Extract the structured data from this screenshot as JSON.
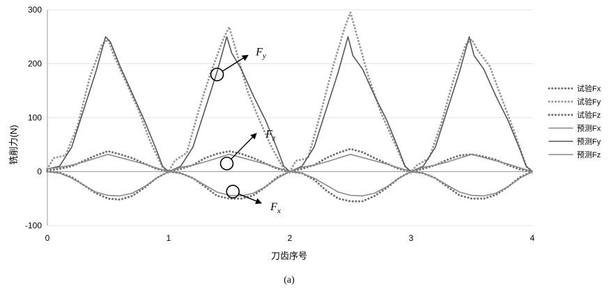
{
  "chart_data": {
    "type": "line",
    "title": "",
    "xlabel": "刀齿序号",
    "ylabel": "铣削力(N)",
    "caption": "(a)",
    "xlim": [
      0,
      4
    ],
    "ylim": [
      -100,
      300
    ],
    "xticks": [
      0,
      1,
      2,
      3,
      4
    ],
    "yticks": [
      -100,
      0,
      100,
      200,
      300
    ],
    "grid": "horizontal",
    "legend_position": "right",
    "series": [
      {
        "name": "试验Fx",
        "style": "dotted",
        "color": "#6f6f6f",
        "x": [
          0,
          0.1,
          0.2,
          0.3,
          0.4,
          0.5,
          0.6,
          0.7,
          0.8,
          0.9,
          1.0,
          1.1,
          1.2,
          1.3,
          1.4,
          1.5,
          1.6,
          1.7,
          1.8,
          1.9,
          2.0,
          2.1,
          2.2,
          2.3,
          2.4,
          2.5,
          2.6,
          2.7,
          2.8,
          2.9,
          3.0,
          3.1,
          3.2,
          3.3,
          3.4,
          3.5,
          3.6,
          3.7,
          3.8,
          3.9,
          4.0
        ],
        "y": [
          0,
          -2,
          -10,
          -25,
          -40,
          -50,
          -52,
          -45,
          -30,
          -12,
          0,
          -3,
          -12,
          -28,
          -45,
          -50,
          -50,
          -44,
          -28,
          -10,
          0,
          -3,
          -15,
          -35,
          -50,
          -55,
          -55,
          -45,
          -30,
          -12,
          0,
          -3,
          -12,
          -28,
          -44,
          -50,
          -50,
          -43,
          -28,
          -10,
          0
        ]
      },
      {
        "name": "试验Fy",
        "style": "dotted",
        "color": "#9a9a9a",
        "x": [
          0,
          0.05,
          0.15,
          0.25,
          0.35,
          0.45,
          0.5,
          0.55,
          0.65,
          0.75,
          0.85,
          0.95,
          1.0,
          1.05,
          1.15,
          1.25,
          1.35,
          1.45,
          1.5,
          1.55,
          1.65,
          1.75,
          1.85,
          1.95,
          2.0,
          2.05,
          2.15,
          2.25,
          2.35,
          2.45,
          2.5,
          2.55,
          2.65,
          2.75,
          2.85,
          2.95,
          3.0,
          3.05,
          3.15,
          3.25,
          3.35,
          3.45,
          3.5,
          3.55,
          3.65,
          3.75,
          3.85,
          3.95,
          4.0
        ],
        "y": [
          5,
          25,
          30,
          85,
          175,
          235,
          245,
          215,
          165,
          115,
          55,
          8,
          0,
          20,
          35,
          115,
          185,
          245,
          268,
          230,
          150,
          95,
          45,
          5,
          0,
          20,
          25,
          105,
          190,
          265,
          295,
          255,
          175,
          110,
          60,
          10,
          0,
          12,
          25,
          90,
          170,
          235,
          245,
          225,
          195,
          135,
          75,
          10,
          0
        ]
      },
      {
        "name": "试验Fz",
        "style": "dotted",
        "color": "#6f6f6f",
        "x": [
          0,
          0.1,
          0.2,
          0.3,
          0.4,
          0.5,
          0.6,
          0.7,
          0.8,
          0.9,
          1.0,
          1.1,
          1.2,
          1.3,
          1.4,
          1.5,
          1.6,
          1.7,
          1.8,
          1.9,
          2.0,
          2.1,
          2.2,
          2.3,
          2.4,
          2.5,
          2.6,
          2.7,
          2.8,
          2.9,
          3.0,
          3.1,
          3.2,
          3.3,
          3.4,
          3.5,
          3.6,
          3.7,
          3.8,
          3.9,
          4.0
        ],
        "y": [
          2,
          5,
          10,
          20,
          30,
          38,
          32,
          25,
          15,
          5,
          0,
          5,
          12,
          25,
          33,
          38,
          33,
          25,
          15,
          5,
          0,
          5,
          12,
          25,
          35,
          42,
          36,
          25,
          15,
          5,
          0,
          5,
          12,
          22,
          30,
          32,
          28,
          22,
          12,
          4,
          0
        ]
      },
      {
        "name": "预测Fx",
        "style": "solid",
        "color": "#8a8a8a",
        "x": [
          0,
          0.1,
          0.2,
          0.3,
          0.4,
          0.5,
          0.6,
          0.7,
          0.8,
          0.9,
          1.0,
          1.1,
          1.2,
          1.3,
          1.4,
          1.5,
          1.6,
          1.7,
          1.8,
          1.9,
          2.0,
          2.1,
          2.2,
          2.3,
          2.4,
          2.5,
          2.6,
          2.7,
          2.8,
          2.9,
          3.0,
          3.1,
          3.2,
          3.3,
          3.4,
          3.5,
          3.6,
          3.7,
          3.8,
          3.9,
          4.0
        ],
        "y": [
          0,
          -3,
          -12,
          -25,
          -38,
          -44,
          -45,
          -40,
          -28,
          -12,
          0,
          -3,
          -12,
          -25,
          -38,
          -44,
          -45,
          -40,
          -28,
          -12,
          0,
          -3,
          -12,
          -25,
          -38,
          -44,
          -45,
          -40,
          -28,
          -12,
          0,
          -3,
          -12,
          -25,
          -38,
          -44,
          -45,
          -40,
          -28,
          -12,
          0
        ]
      },
      {
        "name": "预测Fy",
        "style": "solid",
        "color": "#555555",
        "x": [
          0,
          0.1,
          0.2,
          0.3,
          0.4,
          0.48,
          0.52,
          0.6,
          0.7,
          0.8,
          0.9,
          0.95,
          1.0,
          1.1,
          1.2,
          1.3,
          1.4,
          1.48,
          1.52,
          1.6,
          1.7,
          1.8,
          1.9,
          1.95,
          2.0,
          2.1,
          2.2,
          2.3,
          2.4,
          2.48,
          2.52,
          2.6,
          2.7,
          2.8,
          2.9,
          2.95,
          3.0,
          3.1,
          3.2,
          3.3,
          3.4,
          3.48,
          3.52,
          3.6,
          3.7,
          3.8,
          3.9,
          3.95,
          4.0
        ],
        "y": [
          5,
          10,
          45,
          115,
          185,
          250,
          240,
          195,
          145,
          95,
          40,
          10,
          0,
          10,
          45,
          115,
          185,
          250,
          220,
          190,
          140,
          95,
          40,
          10,
          0,
          10,
          45,
          115,
          185,
          250,
          215,
          190,
          140,
          95,
          40,
          10,
          0,
          10,
          45,
          115,
          185,
          250,
          215,
          190,
          140,
          95,
          40,
          10,
          0
        ]
      },
      {
        "name": "预测Fz",
        "style": "solid",
        "color": "#8a8a8a",
        "x": [
          0,
          0.1,
          0.2,
          0.3,
          0.4,
          0.5,
          0.6,
          0.7,
          0.8,
          0.9,
          1.0,
          1.1,
          1.2,
          1.3,
          1.4,
          1.5,
          1.6,
          1.7,
          1.8,
          1.9,
          2.0,
          2.1,
          2.2,
          2.3,
          2.4,
          2.5,
          2.6,
          2.7,
          2.8,
          2.9,
          3.0,
          3.1,
          3.2,
          3.3,
          3.4,
          3.5,
          3.6,
          3.7,
          3.8,
          3.9,
          4.0
        ],
        "y": [
          5,
          8,
          12,
          18,
          25,
          32,
          26,
          20,
          14,
          7,
          0,
          8,
          12,
          18,
          25,
          32,
          26,
          20,
          14,
          7,
          0,
          8,
          12,
          18,
          25,
          32,
          26,
          20,
          14,
          7,
          0,
          8,
          12,
          18,
          25,
          32,
          26,
          20,
          14,
          7,
          0
        ]
      }
    ],
    "annotations": [
      {
        "name": "fy",
        "main": "F",
        "sub": "y",
        "circle": [
          1.4,
          180
        ],
        "arrow_to": [
          1.65,
          215
        ],
        "label_at": [
          1.72,
          222
        ]
      },
      {
        "name": "fz",
        "main": "F",
        "sub": "z",
        "circle": [
          1.48,
          15
        ],
        "arrow_to": [
          1.72,
          70
        ],
        "label_at": [
          1.8,
          70
        ]
      },
      {
        "name": "fx",
        "main": "F",
        "sub": "x",
        "circle": [
          1.53,
          -37
        ],
        "arrow_to": [
          1.76,
          -58
        ],
        "label_at": [
          1.84,
          -65
        ]
      }
    ]
  }
}
